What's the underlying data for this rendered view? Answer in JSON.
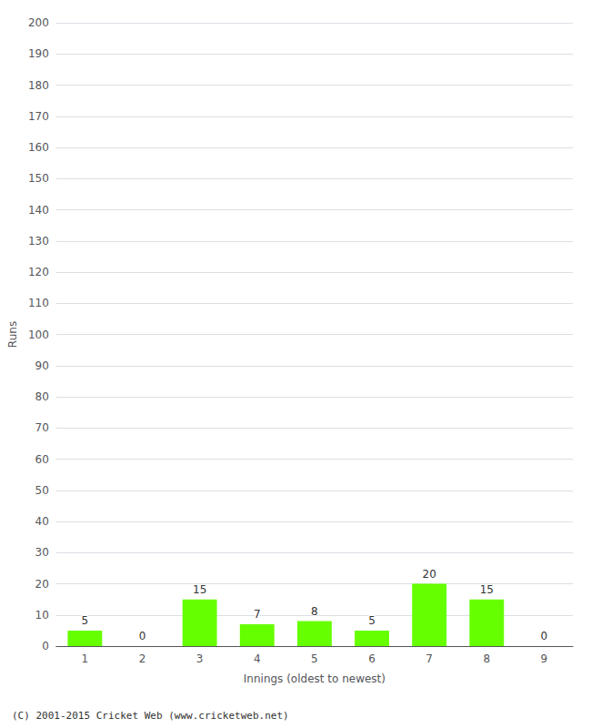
{
  "chart_data": {
    "type": "bar",
    "xlabel": "Innings (oldest to newest)",
    "ylabel": "Runs",
    "categories": [
      "1",
      "2",
      "3",
      "4",
      "5",
      "6",
      "7",
      "8",
      "9"
    ],
    "values": [
      5,
      0,
      15,
      7,
      8,
      5,
      20,
      15,
      0
    ],
    "color": "#66ff00",
    "ylim": [
      0,
      200
    ],
    "yticks": [
      0,
      10,
      20,
      30,
      40,
      50,
      60,
      70,
      80,
      90,
      100,
      110,
      120,
      130,
      140,
      150,
      160,
      170,
      180,
      190,
      200
    ],
    "grid": true,
    "data_labels": true,
    "annotations": [
      "(C) 2001-2015 Cricket Web (www.cricketweb.net)"
    ]
  }
}
